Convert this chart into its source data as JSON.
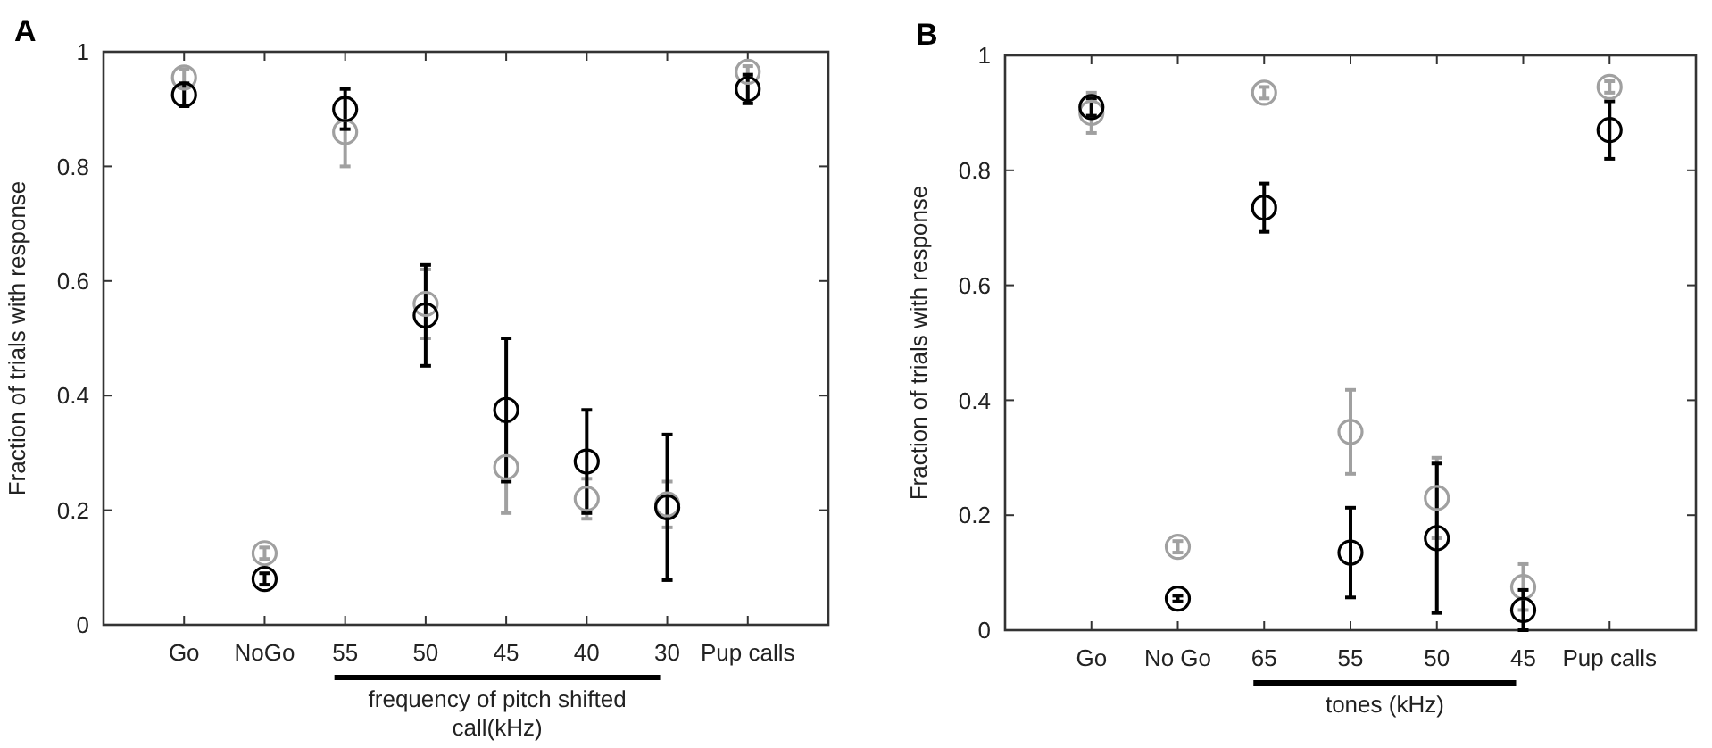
{
  "chart_data": [
    {
      "type": "scatter",
      "title": "A",
      "ylabel": "Fraction of trials with response",
      "xlabel": "frequency of pitch shifted call(kHz)",
      "categories": [
        "Go",
        "NoGo",
        "55",
        "50",
        "45",
        "40",
        "30",
        "Pup calls"
      ],
      "ylim": [
        0,
        1
      ],
      "yticks": [
        0,
        0.2,
        0.4,
        0.6,
        0.8,
        1
      ],
      "grid": false,
      "marker": "circle",
      "series": [
        {
          "color": "#a0a0a0",
          "values": [
            0.955,
            0.125,
            0.86,
            0.56,
            0.275,
            0.22,
            0.21,
            0.965
          ],
          "errors": [
            0.015,
            0.01,
            0.06,
            0.06,
            0.08,
            0.035,
            0.04,
            0.01
          ]
        },
        {
          "color": "#000000",
          "values": [
            0.925,
            0.08,
            0.9,
            0.54,
            0.375,
            0.285,
            0.205,
            0.935
          ],
          "errors": [
            0.02,
            0.01,
            0.035,
            0.088,
            0.125,
            0.09,
            0.127,
            0.025
          ]
        }
      ]
    },
    {
      "type": "scatter",
      "title": "B",
      "ylabel": "Fraction of trials with response",
      "xlabel": "tones (kHz)",
      "categories": [
        "Go",
        "No Go",
        "65",
        "55",
        "50",
        "45",
        "Pup calls"
      ],
      "ylim": [
        0,
        1
      ],
      "yticks": [
        0,
        0.2,
        0.4,
        0.6,
        0.8,
        1
      ],
      "grid": false,
      "marker": "circle",
      "series": [
        {
          "color": "#a0a0a0",
          "values": [
            0.9,
            0.145,
            0.935,
            0.345,
            0.23,
            0.075,
            0.945
          ],
          "errors": [
            0.035,
            0.01,
            0.01,
            0.073,
            0.07,
            0.04,
            0.01
          ]
        },
        {
          "color": "#000000",
          "values": [
            0.91,
            0.055,
            0.735,
            0.135,
            0.16,
            0.035,
            0.87
          ],
          "errors": [
            0.015,
            0.005,
            0.042,
            0.078,
            0.13,
            0.035,
            0.05
          ]
        }
      ]
    }
  ]
}
